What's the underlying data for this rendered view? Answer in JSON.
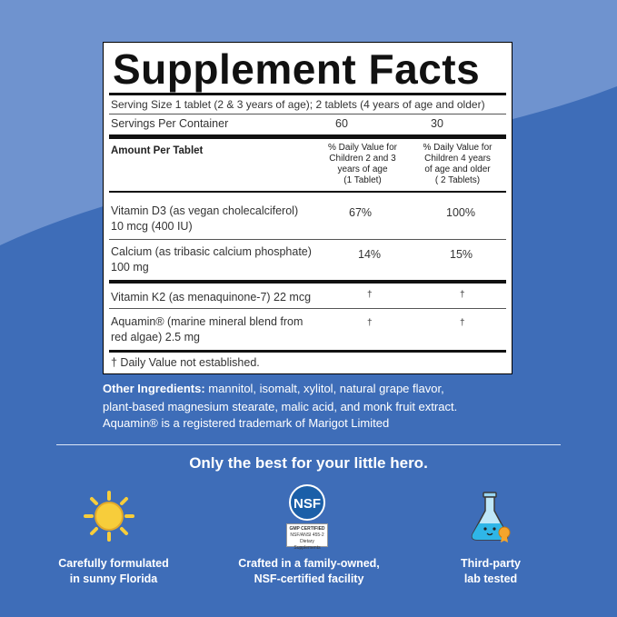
{
  "panel": {
    "title": "Supplement Facts",
    "serving_size": "Serving Size 1 tablet (2 & 3 years of age); 2 tablets (4 years of age and older)",
    "servings_label": "Servings Per Container",
    "servings_col1": "60",
    "servings_col2": "30",
    "amount_header": "Amount Per Tablet",
    "col1_header": [
      "% Daily Value for",
      "Children 2 and 3",
      "years of age",
      "(1 Tablet)"
    ],
    "col2_header": [
      "% Daily Value for",
      "Children 4 years",
      "of age and older",
      "( 2 Tablets)"
    ],
    "rows": [
      {
        "name_line1": "Vitamin D3 (as vegan cholecalciferol)",
        "name_line2": "10 mcg (400 IU)",
        "v1": "67%",
        "v2": "100%"
      },
      {
        "name_line1": "Calcium (as tribasic calcium phosphate)",
        "name_line2": "100 mg",
        "v1": "14%",
        "v2": "15%"
      },
      {
        "name_line1": "Vitamin K2 (as menaquinone-7) 22 mcg",
        "name_line2": "",
        "v1": "†",
        "v2": "†"
      },
      {
        "name_line1": "Aquamin® (marine mineral blend from",
        "name_line2": "red algae) 2.5 mg",
        "v1": "†",
        "v2": "†"
      }
    ],
    "footnote": "† Daily Value not established."
  },
  "other_ingredients": {
    "label": "Other Ingredients:",
    "text_line1": " mannitol, isomalt, xylitol, natural grape flavor,",
    "text_line2": "plant-based magnesium stearate, malic acid, and monk fruit extract."
  },
  "trademark": "Aquamin® is a registered trademark of Marigot Limited",
  "tagline": "Only the best for your little hero.",
  "features": [
    {
      "icon": "sun-icon",
      "line1": "Carefully formulated",
      "line2": "in sunny Florida"
    },
    {
      "icon": "nsf-badge-icon",
      "line1": "Crafted in a family-owned,",
      "line2": "NSF-certified facility",
      "badge_text": "NSF",
      "badge_sub1": "GMP CERTIFIED",
      "badge_sub2": "NSF/ANSI 455-2",
      "badge_sub3": "Dietary Supplements"
    },
    {
      "icon": "lab-flask-icon",
      "line1": "Third-party",
      "line2": "lab tested"
    }
  ],
  "colors": {
    "background_light": "#6f93cf",
    "background_dark": "#3e6db8",
    "text_white": "#ffffff",
    "nsf_blue": "#1b5fa8",
    "sun_yellow": "#f7cd3b"
  }
}
